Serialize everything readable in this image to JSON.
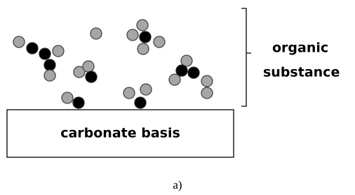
{
  "bracket_label": [
    "organic",
    "substance"
  ],
  "basis_label": "carbonate basis",
  "caption": "a)"
}
